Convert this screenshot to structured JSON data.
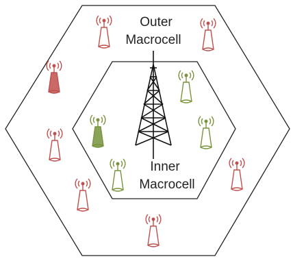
{
  "outer_cell": {
    "label_line1": "Outer",
    "label_line2": "Macrocell",
    "antenna_color": "#c0504d"
  },
  "inner_cell": {
    "label_line1": "Inner",
    "label_line2": "Macrocell",
    "antenna_color": "#77933c"
  },
  "colors": {
    "stroke": "#222222",
    "tower": "#111111"
  },
  "icons": [
    "macrocell-tower-icon",
    "small-cell-antenna-icon"
  ]
}
